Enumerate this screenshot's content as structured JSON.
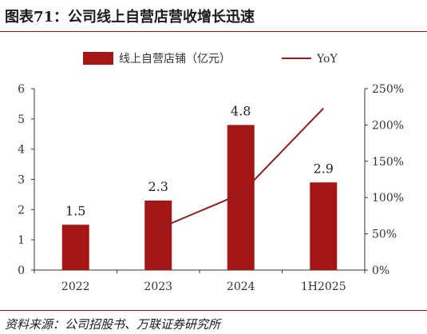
{
  "title": "图表71：公司线上自营店营收增长迅速",
  "source": "资料来源：公司招股书、万联证券研究所",
  "chart_data": {
    "type": "bar",
    "categories": [
      "2022",
      "2023",
      "2024",
      "1H2025"
    ],
    "series": [
      {
        "name": "线上自营店铺（亿元）",
        "type": "bar",
        "axis": "left",
        "values": [
          1.5,
          2.3,
          4.8,
          2.9
        ],
        "color": "#a51717"
      },
      {
        "name": "YoY",
        "type": "line",
        "axis": "right",
        "values": [
          null,
          57,
          105,
          223
        ],
        "color": "#8b1f1f"
      }
    ],
    "data_labels": [
      "1.5",
      "2.3",
      "4.8",
      "2.9"
    ],
    "y_left": {
      "min": 0,
      "max": 6,
      "ticks": [
        0,
        1,
        2,
        3,
        4,
        5,
        6
      ],
      "tick_labels": [
        "0",
        "1",
        "2",
        "3",
        "4",
        "5",
        "6"
      ]
    },
    "y_right": {
      "min": 0,
      "max": 250,
      "ticks": [
        0,
        50,
        100,
        150,
        200,
        250
      ],
      "tick_labels": [
        "0%",
        "50%",
        "100%",
        "150%",
        "200%",
        "250%"
      ]
    },
    "legend_position": "top-center",
    "grid": false
  }
}
